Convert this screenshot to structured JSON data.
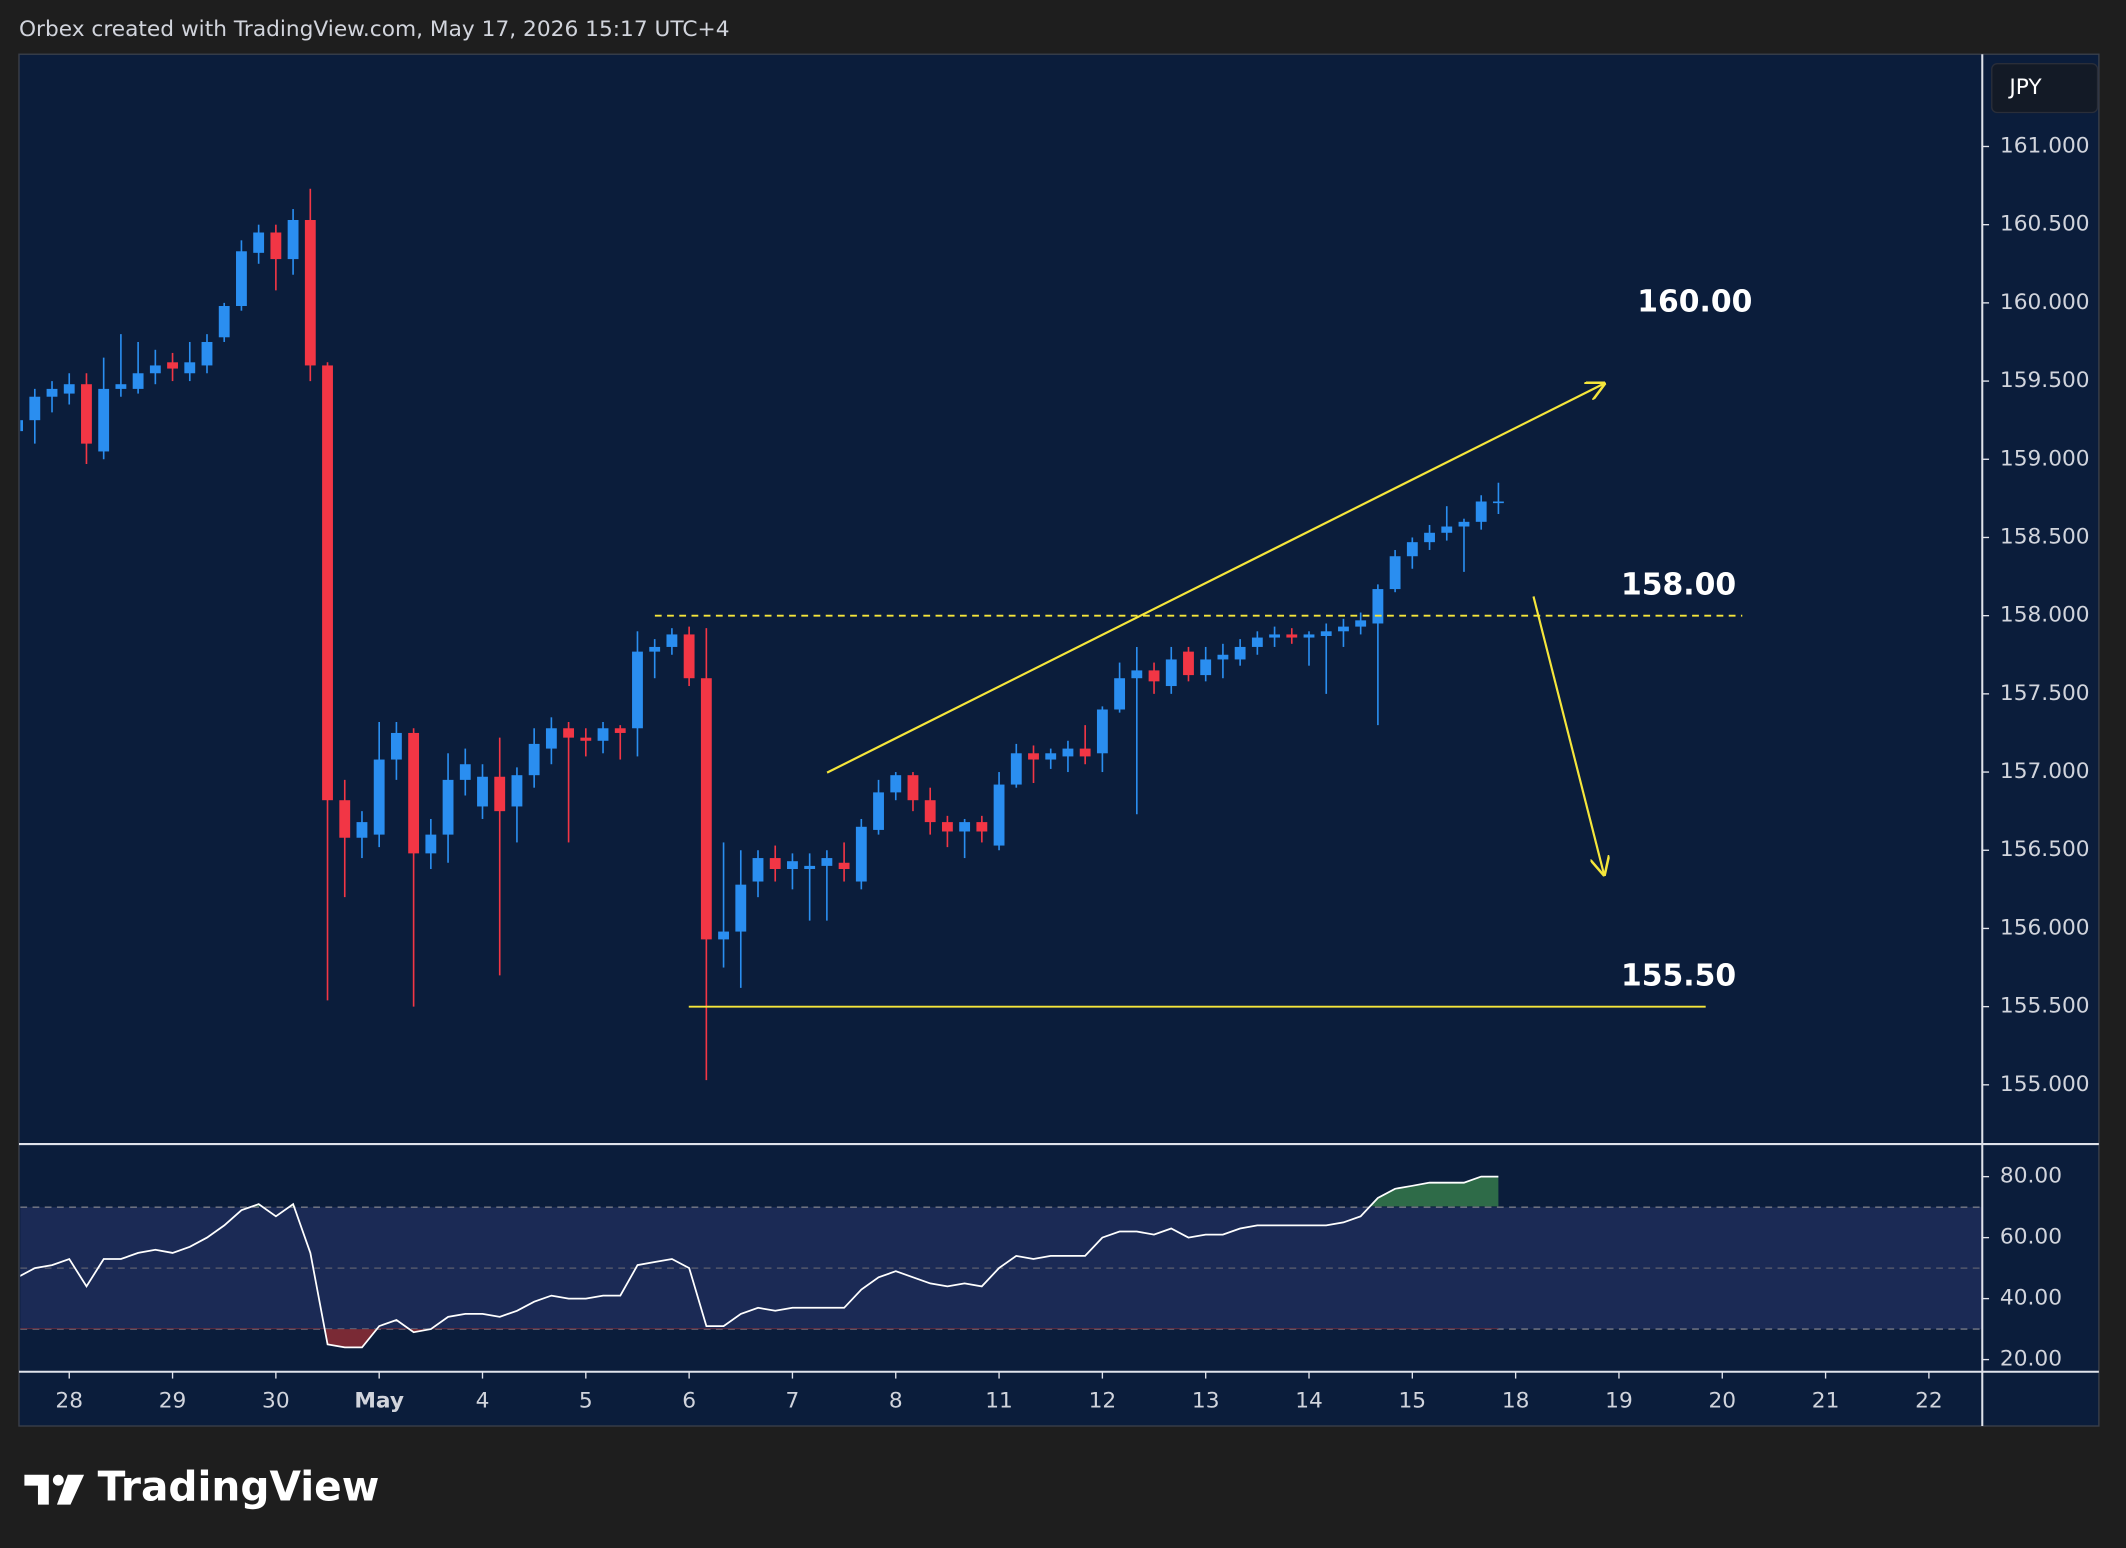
{
  "header": "Orbex created with TradingView.com, May 17, 2026 15:17 UTC+4",
  "currency": "JPY",
  "footer": "TradingView",
  "chart_data": [
    {
      "type": "candlestick",
      "up_color": "#2a8ef0",
      "down_color": "#f23645",
      "xlim": [
        0.16,
        114.1
      ],
      "ylim": [
        154.63,
        161.59
      ],
      "yticks": [
        {
          "value": 155,
          "label": "155.000"
        },
        {
          "value": 155.5,
          "label": "155.500"
        },
        {
          "value": 156,
          "label": "156.000"
        },
        {
          "value": 156.5,
          "label": "156.500"
        },
        {
          "value": 157,
          "label": "157.000"
        },
        {
          "value": 157.5,
          "label": "157.500"
        },
        {
          "value": 158,
          "label": "158.000"
        },
        {
          "value": 158.5,
          "label": "158.500"
        },
        {
          "value": 159,
          "label": "159.000"
        },
        {
          "value": 159.5,
          "label": "159.500"
        },
        {
          "value": 160,
          "label": "160.000"
        },
        {
          "value": 160.5,
          "label": "160.500"
        },
        {
          "value": 161,
          "label": "161.000"
        }
      ],
      "xticks": [
        {
          "value": 3,
          "label": "28"
        },
        {
          "value": 9,
          "label": "29"
        },
        {
          "value": 15,
          "label": "30"
        },
        {
          "value": 21,
          "label": "May"
        },
        {
          "value": 27,
          "label": "4"
        },
        {
          "value": 33,
          "label": "5"
        },
        {
          "value": 39,
          "label": "6"
        },
        {
          "value": 45,
          "label": "7"
        },
        {
          "value": 51,
          "label": "8"
        },
        {
          "value": 57,
          "label": "11"
        },
        {
          "value": 63,
          "label": "12"
        },
        {
          "value": 69,
          "label": "13"
        },
        {
          "value": 75,
          "label": "14"
        },
        {
          "value": 81,
          "label": "15"
        },
        {
          "value": 87,
          "label": "18"
        },
        {
          "value": 93,
          "label": "19"
        },
        {
          "value": 99,
          "label": "20"
        },
        {
          "value": 105,
          "label": "21"
        },
        {
          "value": 111,
          "label": "22"
        }
      ],
      "open": [
        159.18,
        159.25,
        159.4,
        159.42,
        159.48,
        159.05,
        159.45,
        159.45,
        159.55,
        159.62,
        159.55,
        159.6,
        159.78,
        159.98,
        160.32,
        160.45,
        160.28,
        160.53,
        159.6,
        156.82,
        156.58,
        156.6,
        157.08,
        157.25,
        156.48,
        156.6,
        156.95,
        156.78,
        156.97,
        156.78,
        156.98,
        157.15,
        157.28,
        157.22,
        157.2,
        157.28,
        157.28,
        157.77,
        157.8,
        157.88,
        157.6,
        155.93,
        155.98,
        156.3,
        156.45,
        156.38,
        156.38,
        156.4,
        156.42,
        156.3,
        156.63,
        156.87,
        156.98,
        156.82,
        156.68,
        156.62,
        156.68,
        156.53,
        156.92,
        157.12,
        157.08,
        157.1,
        157.15,
        157.12,
        157.4,
        157.6,
        157.65,
        157.55,
        157.77,
        157.62,
        157.72,
        157.72,
        157.8,
        157.86,
        157.88,
        157.86,
        157.87,
        157.9,
        157.93,
        157.95,
        158.17,
        158.38,
        158.47,
        158.53,
        158.57,
        158.6,
        158.72
      ],
      "high": [
        159.3,
        159.45,
        159.5,
        159.55,
        159.55,
        159.65,
        159.8,
        159.75,
        159.7,
        159.68,
        159.75,
        159.8,
        160.0,
        160.4,
        160.5,
        160.5,
        160.6,
        160.73,
        159.62,
        156.95,
        156.75,
        157.32,
        157.32,
        157.28,
        156.7,
        157.12,
        157.15,
        157.05,
        157.22,
        157.03,
        157.28,
        157.35,
        157.32,
        157.28,
        157.32,
        157.3,
        157.9,
        157.85,
        157.92,
        157.93,
        157.92,
        156.55,
        156.5,
        156.5,
        156.53,
        156.48,
        156.48,
        156.5,
        156.55,
        156.7,
        156.95,
        157.0,
        157.0,
        156.9,
        156.72,
        156.7,
        156.72,
        157.0,
        157.18,
        157.17,
        157.15,
        157.2,
        157.3,
        157.42,
        157.7,
        157.8,
        157.7,
        157.8,
        157.8,
        157.8,
        157.82,
        157.85,
        157.9,
        157.93,
        157.92,
        157.9,
        157.95,
        157.98,
        158.02,
        158.2,
        158.42,
        158.5,
        158.58,
        158.7,
        158.62,
        158.77,
        158.85
      ],
      "low": [
        159.1,
        159.1,
        159.3,
        159.35,
        158.97,
        159.0,
        159.4,
        159.42,
        159.48,
        159.5,
        159.5,
        159.55,
        159.75,
        159.95,
        160.25,
        160.08,
        160.18,
        159.5,
        155.54,
        156.2,
        156.45,
        156.52,
        156.95,
        155.5,
        156.38,
        156.42,
        156.85,
        156.7,
        155.7,
        156.55,
        156.9,
        157.05,
        156.55,
        157.1,
        157.12,
        157.08,
        157.1,
        157.6,
        157.75,
        157.55,
        155.03,
        155.75,
        155.62,
        156.2,
        156.3,
        156.25,
        156.05,
        156.05,
        156.3,
        156.25,
        156.6,
        156.82,
        156.75,
        156.6,
        156.52,
        156.45,
        156.55,
        156.5,
        156.9,
        156.93,
        157.02,
        157.0,
        157.05,
        157.0,
        157.38,
        156.73,
        157.5,
        157.5,
        157.58,
        157.58,
        157.6,
        157.68,
        157.75,
        157.8,
        157.82,
        157.68,
        157.5,
        157.8,
        157.88,
        157.3,
        158.15,
        158.3,
        158.42,
        158.48,
        158.28,
        158.55,
        158.65
      ],
      "close": [
        159.25,
        159.4,
        159.45,
        159.48,
        159.1,
        159.45,
        159.48,
        159.55,
        159.6,
        159.58,
        159.62,
        159.75,
        159.98,
        160.33,
        160.45,
        160.28,
        160.53,
        159.6,
        156.82,
        156.58,
        156.68,
        157.08,
        157.25,
        156.48,
        156.6,
        156.95,
        157.05,
        156.97,
        156.75,
        156.98,
        157.18,
        157.28,
        157.22,
        157.2,
        157.28,
        157.25,
        157.77,
        157.8,
        157.88,
        157.6,
        155.93,
        155.98,
        156.28,
        156.45,
        156.38,
        156.43,
        156.4,
        156.45,
        156.38,
        156.65,
        156.87,
        156.98,
        156.82,
        156.68,
        156.62,
        156.68,
        156.62,
        156.92,
        157.12,
        157.08,
        157.12,
        157.15,
        157.1,
        157.4,
        157.6,
        157.65,
        157.58,
        157.72,
        157.62,
        157.72,
        157.75,
        157.8,
        157.86,
        157.88,
        157.86,
        157.88,
        157.9,
        157.93,
        157.97,
        158.17,
        158.38,
        158.47,
        158.53,
        158.57,
        158.6,
        158.73,
        158.73
      ],
      "annotations": [
        {
          "label": "160.00",
          "value": 160
        },
        {
          "label": "158.00",
          "value": 158,
          "line": "dashed"
        },
        {
          "label": "155.50",
          "value": 155.5,
          "line": "solid"
        }
      ],
      "annotation_color": "#f5e63b"
    },
    {
      "type": "line",
      "color": "#ffffff",
      "band": [
        30,
        70
      ],
      "band_color": "#1b2a55",
      "overbought_color": "#2e6b48",
      "oversold_color": "#7a2a35",
      "xlim": [
        0.16,
        114.1
      ],
      "ylim": [
        16,
        89.8
      ],
      "yticks": [
        {
          "value": 20,
          "label": "20.00"
        },
        {
          "value": 40,
          "label": "40.00"
        },
        {
          "value": 60,
          "label": "60.00"
        },
        {
          "value": 80,
          "label": "80.00"
        }
      ],
      "values": [
        47,
        50,
        51,
        53,
        44,
        53,
        53,
        55,
        56,
        55,
        57,
        60,
        64,
        69,
        71,
        67,
        71,
        55,
        25,
        24,
        24,
        31,
        33,
        29,
        30,
        34,
        35,
        35,
        34,
        36,
        39,
        41,
        40,
        40,
        41,
        41,
        51,
        52,
        53,
        50,
        31,
        31,
        35,
        37,
        36,
        37,
        37,
        37,
        37,
        43,
        47,
        49,
        47,
        45,
        44,
        45,
        44,
        50,
        54,
        53,
        54,
        54,
        54,
        60,
        62,
        62,
        61,
        63,
        60,
        61,
        61,
        63,
        64,
        64,
        64,
        64,
        64,
        65,
        67,
        73,
        76,
        77,
        78,
        78,
        78,
        80,
        80
      ]
    }
  ]
}
